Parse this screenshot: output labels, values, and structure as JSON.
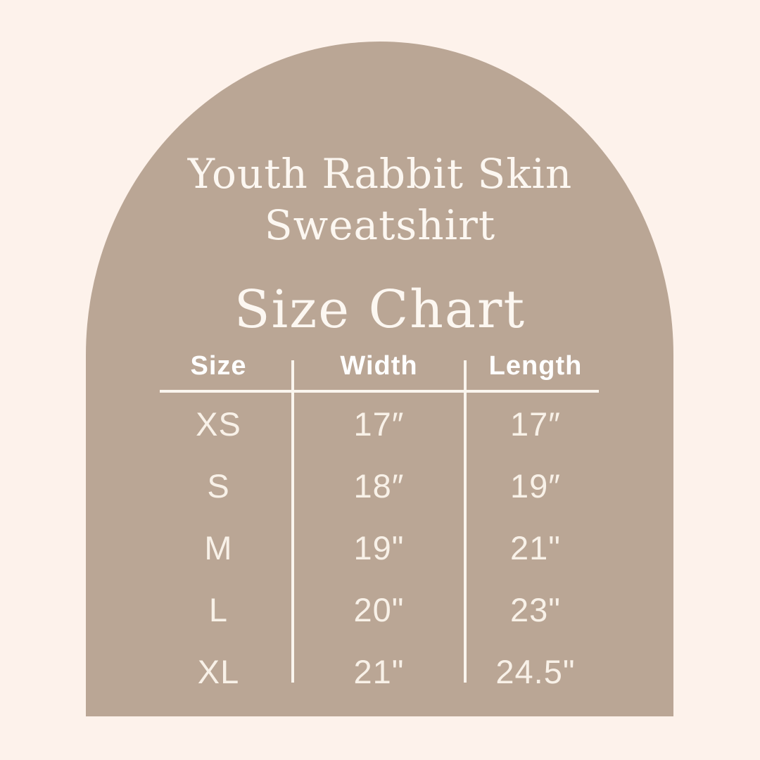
{
  "colors": {
    "background": "#fdf2eb",
    "arch": "#baa695",
    "title_text": "#fcf7f1",
    "table_text": "#f8f1e8",
    "lines": "#faf5ee"
  },
  "title": {
    "line1": "Youth Rabbit Skin",
    "line2": "Sweatshirt",
    "heading": "Size Chart"
  },
  "chart_data": {
    "type": "table",
    "title": "Youth Rabbit Skin Sweatshirt Size Chart",
    "columns": [
      "Size",
      "Width",
      "Length"
    ],
    "rows": [
      [
        "XS",
        "17″",
        "17″"
      ],
      [
        "S",
        "18″",
        "19″"
      ],
      [
        "M",
        "19\"",
        "21\""
      ],
      [
        "L",
        "20\"",
        "23\""
      ],
      [
        "XL",
        "21\"",
        "24.5\""
      ]
    ],
    "layout": {
      "grid": "two vertical column dividers, one horizontal rule under header",
      "legend_position": "none"
    }
  }
}
